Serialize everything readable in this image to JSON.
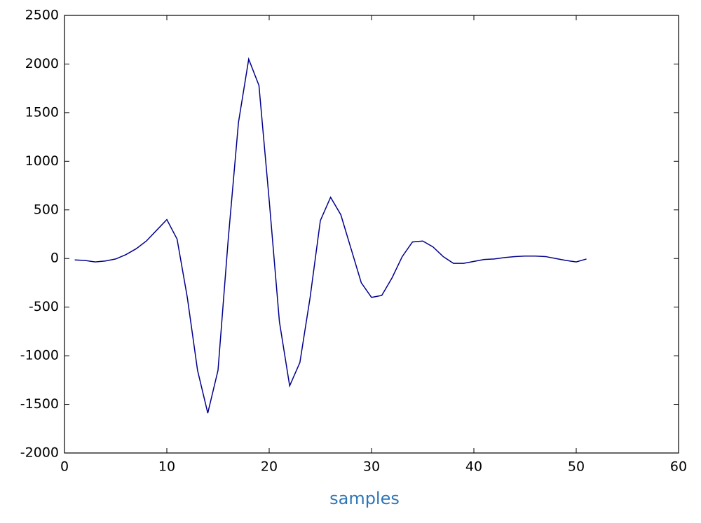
{
  "chart_data": {
    "type": "line",
    "x_label": "samples",
    "x": [
      1,
      2,
      3,
      4,
      5,
      6,
      7,
      8,
      9,
      10,
      11,
      12,
      13,
      14,
      15,
      16,
      17,
      18,
      19,
      20,
      21,
      22,
      23,
      24,
      25,
      26,
      27,
      28,
      29,
      30,
      31,
      32,
      33,
      34,
      35,
      36,
      37,
      38,
      39,
      40,
      41,
      42,
      43,
      44,
      45,
      46,
      47,
      48,
      49,
      50,
      51
    ],
    "series": [
      {
        "color": "#00008b",
        "values": [
          -15,
          -20,
          -35,
          -25,
          -5,
          40,
          100,
          180,
          290,
          400,
          200,
          -400,
          -1150,
          -1590,
          -1150,
          200,
          1400,
          2050,
          1780,
          600,
          -650,
          -1310,
          -1070,
          -400,
          390,
          630,
          450,
          100,
          -250,
          -400,
          -380,
          -200,
          20,
          170,
          180,
          120,
          20,
          -50,
          -50,
          -30,
          -10,
          -5,
          10,
          20,
          25,
          25,
          20,
          0,
          -20,
          -35,
          -5
        ]
      }
    ],
    "xlim": [
      0,
      60
    ],
    "xticks": [
      0,
      10,
      20,
      30,
      40,
      50,
      60
    ],
    "ylim": [
      -2000,
      2500
    ],
    "yticks": [
      -2000,
      -1500,
      -1000,
      -500,
      0,
      500,
      1000,
      1500,
      2000,
      2500
    ],
    "grid": false
  }
}
